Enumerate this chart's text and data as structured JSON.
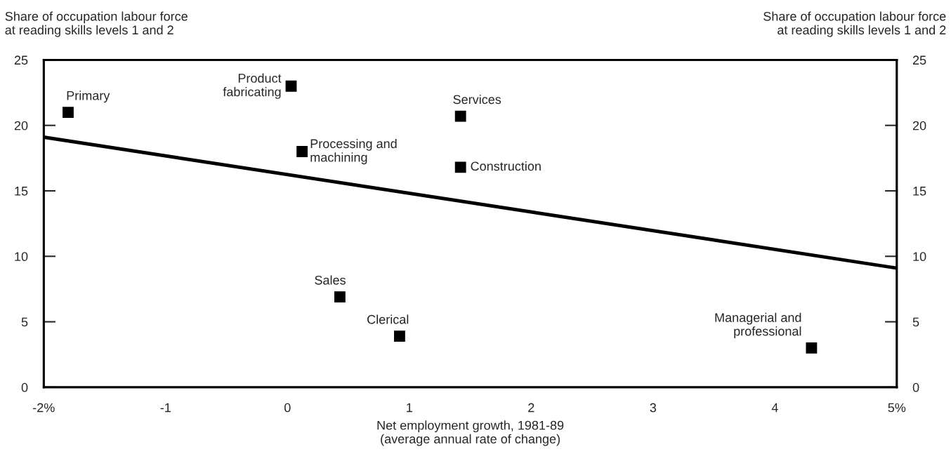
{
  "chart_data": {
    "type": "scatter",
    "xlabel": "Net employment growth, 1981-89\n(average annual rate of change)",
    "ylabel": "Share of occupation labour force\nat reading skills levels 1 and 2",
    "y2label": "Share of occupation labour force\nat reading skills levels 1 and 2",
    "xlim": [
      -2,
      5
    ],
    "xticks": [
      {
        "value": -2,
        "label": "-2%"
      },
      -1,
      0,
      1,
      2,
      3,
      4,
      {
        "value": 5,
        "label": "5%"
      }
    ],
    "ylim": [
      0,
      25
    ],
    "yticks": [
      0,
      5,
      10,
      15,
      20,
      25
    ],
    "y2lim": [
      0,
      25
    ],
    "y2ticks": [
      0,
      5,
      10,
      15,
      20,
      25
    ],
    "grid": false,
    "legend": false,
    "marker": "square",
    "series": [
      {
        "color": "#000000",
        "x": [
          -1.8,
          0.03,
          0.12,
          1.42,
          1.42,
          0.43,
          0.92,
          4.3
        ],
        "values": [
          21,
          23,
          18,
          20.7,
          16.8,
          6.9,
          3.9,
          3.0
        ]
      },
      {
        "type": "line",
        "color": "#000000",
        "line_style": "solid",
        "marker": "none",
        "x": [
          -2,
          5
        ],
        "values": [
          19.1,
          9.1
        ]
      }
    ],
    "annotations": [
      {
        "text": "Primary",
        "x": -1.8,
        "y": 21
      },
      {
        "text": "Product\nfabricating",
        "x": 0.03,
        "y": 23
      },
      {
        "text": "Processing and\nmachining",
        "x": 0.12,
        "y": 18
      },
      {
        "text": "Services",
        "x": 1.42,
        "y": 20.7
      },
      {
        "text": "Construction",
        "x": 1.42,
        "y": 16.8
      },
      {
        "text": "Sales",
        "x": 0.43,
        "y": 6.9
      },
      {
        "text": "Clerical",
        "x": 0.92,
        "y": 3.9
      },
      {
        "text": "Managerial and\nprofessional",
        "x": 4.3,
        "y": 3.0
      }
    ]
  }
}
